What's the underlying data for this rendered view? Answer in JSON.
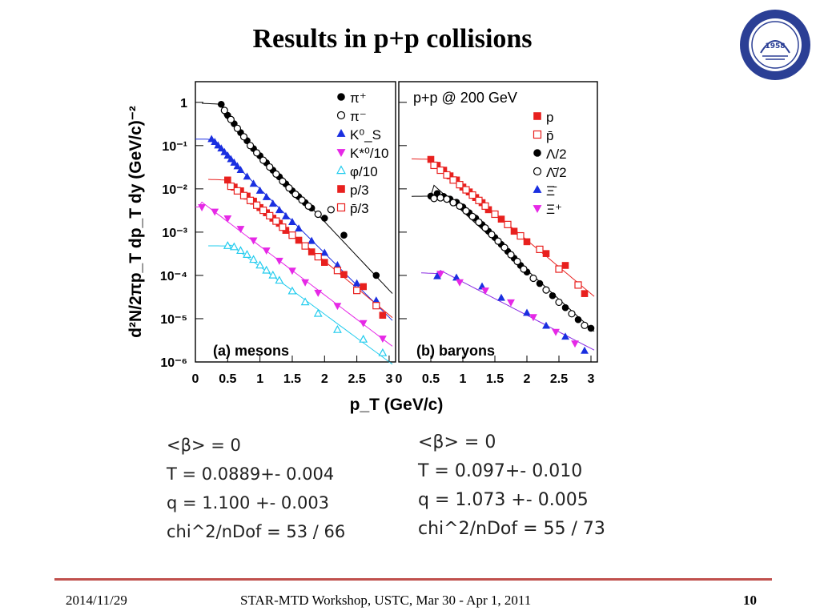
{
  "slide": {
    "title": "Results in p+p collisions",
    "footer": {
      "date": "2014/11/29",
      "event": "STAR-MTD Workshop, USTC, Mar 30 - Apr 1, 2011",
      "page": "10"
    }
  },
  "logo": {
    "label": "University of Science and Technology of China",
    "year": "1958",
    "color": "#2b3f95"
  },
  "fits": {
    "left": [
      "<β> = 0",
      "T = 0.0889+- 0.004",
      "q = 1.100 +- 0.003",
      "chi^2/nDof = 53 / 66"
    ],
    "right": [
      "<β> = 0",
      "T = 0.097+- 0.010",
      "q = 1.073 +- 0.005",
      "chi^2/nDof = 55 / 73"
    ]
  },
  "chart_data": [
    {
      "type": "scatter",
      "panel_label": "(a) mesons",
      "xlabel": "p_T (GeV/c)",
      "ylabel": "d²N/2πp_T dp_T dy (GeV/c)⁻²",
      "xlim": [
        0,
        3.1
      ],
      "ylim": [
        1e-06,
        3
      ],
      "y_scale": "log",
      "x_ticks": [
        "0",
        "0.5",
        "1",
        "1.5",
        "2",
        "2.5",
        "3"
      ],
      "y_ticks": [
        "1",
        "10⁻¹",
        "10⁻²",
        "10⁻³",
        "10⁻⁴",
        "10⁻⁵",
        "10⁻⁶"
      ],
      "legend_position": "top-right",
      "series": [
        {
          "name": "π⁺",
          "marker": "circle-filled",
          "color": "#000000",
          "fit_color": "#000000",
          "x": [
            0.4,
            0.5,
            0.6,
            0.7,
            0.8,
            0.9,
            1.0,
            1.1,
            1.2,
            1.3,
            1.4,
            1.5,
            1.6,
            1.7,
            1.8,
            2.0,
            2.3,
            2.8
          ],
          "y": [
            0.9,
            0.5,
            0.32,
            0.2,
            0.13,
            0.085,
            0.058,
            0.04,
            0.027,
            0.019,
            0.013,
            0.009,
            0.0066,
            0.0048,
            0.0036,
            0.0021,
            0.00085,
            0.0001
          ]
        },
        {
          "name": "π⁻",
          "marker": "circle-open",
          "color": "#000000",
          "x": [
            0.45,
            0.55,
            0.65,
            0.75,
            0.85,
            0.95,
            1.05,
            1.15,
            1.25,
            1.35,
            1.45,
            1.55,
            1.65,
            1.75,
            1.9,
            2.1
          ],
          "y": [
            0.65,
            0.4,
            0.25,
            0.16,
            0.1,
            0.068,
            0.046,
            0.032,
            0.022,
            0.015,
            0.0105,
            0.0075,
            0.0055,
            0.004,
            0.0026,
            0.0033
          ]
        },
        {
          "name": "K⁰_S",
          "marker": "triangle-up-filled",
          "color": "#1a2fe0",
          "fit_color": "#1a2fe0",
          "x": [
            0.25,
            0.3,
            0.35,
            0.4,
            0.45,
            0.5,
            0.55,
            0.6,
            0.65,
            0.7,
            0.8,
            0.9,
            1.0,
            1.1,
            1.2,
            1.3,
            1.4,
            1.5,
            1.6,
            1.8,
            2.0,
            2.2,
            2.5,
            2.8
          ],
          "y": [
            0.14,
            0.12,
            0.1,
            0.085,
            0.07,
            0.058,
            0.048,
            0.04,
            0.033,
            0.027,
            0.019,
            0.013,
            0.009,
            0.0064,
            0.0045,
            0.0032,
            0.0023,
            0.0017,
            0.0012,
            0.00062,
            0.00033,
            0.00017,
            6.5e-05,
            2.6e-05
          ]
        },
        {
          "name": "K*⁰/10",
          "marker": "triangle-down-filled",
          "color": "#e628e6",
          "fit_color": "#e628e6",
          "x": [
            0.1,
            0.3,
            0.5,
            0.7,
            0.9,
            1.1,
            1.3,
            1.5,
            1.7,
            1.9,
            2.2,
            2.6,
            2.9
          ],
          "y": [
            0.0038,
            0.003,
            0.0021,
            0.0012,
            0.00065,
            0.00038,
            0.00022,
            0.00013,
            7e-05,
            4e-05,
            2e-05,
            8e-06,
            3.5e-06
          ]
        },
        {
          "name": "φ/10",
          "marker": "triangle-up-open",
          "color": "#22ccee",
          "fit_color": "#22ccee",
          "x": [
            0.5,
            0.6,
            0.7,
            0.8,
            0.9,
            1.0,
            1.1,
            1.2,
            1.3,
            1.5,
            1.7,
            1.9,
            2.2,
            2.6,
            2.9
          ],
          "y": [
            0.00048,
            0.00045,
            0.00037,
            0.0003,
            0.00023,
            0.00017,
            0.00013,
            0.0001,
            7.6e-05,
            4.3e-05,
            2.4e-05,
            1.3e-05,
            5.5e-06,
            3.3e-06,
            1.6e-06
          ]
        },
        {
          "name": "p/3",
          "marker": "square-filled",
          "color": "#e8201e",
          "fit_color": "#e8201e",
          "x": [
            0.5,
            0.6,
            0.7,
            0.8,
            0.9,
            1.0,
            1.1,
            1.2,
            1.3,
            1.4,
            1.6,
            1.8,
            2.0,
            2.3,
            2.6,
            2.9
          ],
          "y": [
            0.016,
            0.011,
            0.009,
            0.0068,
            0.0052,
            0.0037,
            0.0028,
            0.0021,
            0.0016,
            0.0011,
            0.00065,
            0.00035,
            0.0002,
            0.000105,
            5.5e-05,
            1.2e-05
          ]
        },
        {
          "name": "p̄/3",
          "marker": "square-open",
          "color": "#e8201e",
          "x": [
            0.55,
            0.65,
            0.75,
            0.85,
            0.95,
            1.05,
            1.15,
            1.25,
            1.35,
            1.5,
            1.7,
            1.9,
            2.2,
            2.5,
            2.8
          ],
          "y": [
            0.0115,
            0.009,
            0.007,
            0.0054,
            0.0042,
            0.0032,
            0.0024,
            0.0018,
            0.0013,
            0.00085,
            0.00048,
            0.00027,
            0.00013,
            4.5e-05,
            2e-05
          ]
        }
      ]
    },
    {
      "type": "scatter",
      "panel_label": "(b) baryons",
      "title": "p+p @ 200 GeV",
      "xlabel": "p_T (GeV/c)",
      "xlim": [
        0,
        3.1
      ],
      "ylim": [
        1e-06,
        3
      ],
      "y_scale": "log",
      "x_ticks": [
        "0",
        "0.5",
        "1",
        "1.5",
        "2",
        "2.5",
        "3"
      ],
      "legend_position": "top-right",
      "series": [
        {
          "name": "p",
          "marker": "square-filled",
          "color": "#e8201e",
          "fit_color": "#e8201e",
          "x": [
            0.5,
            0.6,
            0.7,
            0.8,
            0.9,
            1.0,
            1.1,
            1.2,
            1.3,
            1.4,
            1.6,
            1.8,
            2.0,
            2.3,
            2.6,
            2.9
          ],
          "y": [
            0.048,
            0.035,
            0.027,
            0.02,
            0.016,
            0.011,
            0.0085,
            0.0063,
            0.0048,
            0.0033,
            0.002,
            0.00105,
            0.0006,
            0.00032,
            0.00017,
            3.8e-05
          ]
        },
        {
          "name": "p̄",
          "marker": "square-open",
          "color": "#e8201e",
          "x": [
            0.55,
            0.65,
            0.75,
            0.85,
            0.95,
            1.05,
            1.15,
            1.25,
            1.35,
            1.5,
            1.7,
            1.9,
            2.2,
            2.5,
            2.8
          ],
          "y": [
            0.035,
            0.027,
            0.021,
            0.016,
            0.0125,
            0.0095,
            0.0072,
            0.0054,
            0.004,
            0.0026,
            0.0015,
            0.00082,
            0.0004,
            0.00014,
            6e-05
          ]
        },
        {
          "name": "Λ/2",
          "marker": "circle-filled",
          "color": "#000000",
          "fit_color": "#000000",
          "x": [
            0.5,
            0.6,
            0.7,
            0.8,
            0.9,
            1.0,
            1.1,
            1.2,
            1.3,
            1.4,
            1.5,
            1.6,
            1.7,
            1.8,
            1.9,
            2.0,
            2.2,
            2.4,
            2.6,
            2.8,
            3.0
          ],
          "y": [
            0.0068,
            0.0078,
            0.0067,
            0.0058,
            0.0049,
            0.0038,
            0.0028,
            0.0021,
            0.0015,
            0.00105,
            0.00075,
            0.00052,
            0.00036,
            0.00025,
            0.00017,
            0.00012,
            6.5e-05,
            3.4e-05,
            1.8e-05,
            9.5e-06,
            6e-06
          ]
        },
        {
          "name": "Λ̄/2",
          "marker": "circle-open",
          "color": "#000000",
          "x": [
            0.55,
            0.65,
            0.75,
            0.85,
            0.95,
            1.05,
            1.15,
            1.25,
            1.35,
            1.45,
            1.55,
            1.65,
            1.75,
            1.85,
            1.95,
            2.1,
            2.3,
            2.5,
            2.7,
            2.9
          ],
          "y": [
            0.006,
            0.0062,
            0.0058,
            0.0048,
            0.004,
            0.0031,
            0.0023,
            0.0017,
            0.00125,
            0.00088,
            0.00062,
            0.00044,
            0.0003,
            0.00021,
            0.00014,
            8.6e-05,
            4.6e-05,
            2.4e-05,
            1.3e-05,
            7e-06
          ]
        },
        {
          "name": "Ξ̄",
          "marker": "triangle-up-filled",
          "color": "#1a2fe0",
          "x": [
            0.6,
            0.9,
            1.3,
            1.6,
            2.0,
            2.3,
            2.6,
            2.9
          ],
          "y": [
            9.5e-05,
            8.8e-05,
            5.5e-05,
            3e-05,
            1.35e-05,
            6.8e-06,
            3.8e-06,
            1.8e-06
          ]
        },
        {
          "name": "Ξ⁺",
          "marker": "triangle-down-filled",
          "color": "#e628e6",
          "fit_color": "#8a2be2",
          "x": [
            0.65,
            0.95,
            1.35,
            1.75,
            2.1,
            2.45,
            2.75
          ],
          "y": [
            0.00011,
            7e-05,
            4.5e-05,
            2.4e-05,
            1.1e-05,
            5e-06,
            2.7e-06
          ]
        }
      ]
    }
  ]
}
